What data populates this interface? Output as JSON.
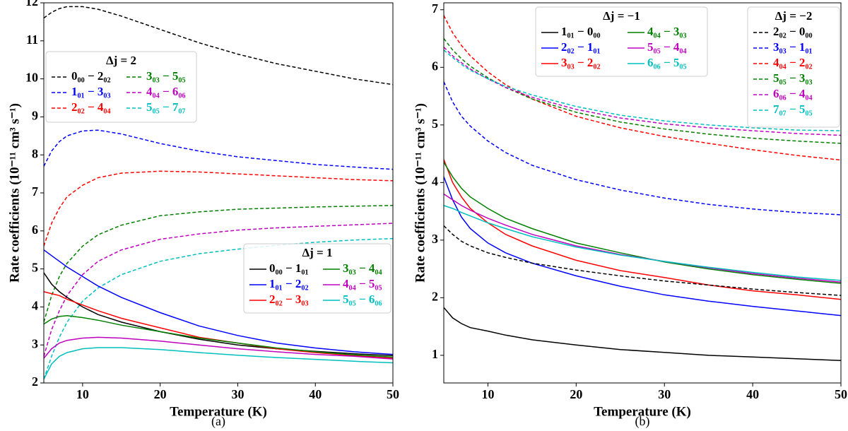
{
  "chart_data": [
    {
      "type": "line",
      "caption": "(a)",
      "xlabel": "Temperature (K)",
      "ylabel": "Rate coefficients (10⁻¹¹ cm³ s⁻¹)",
      "x": [
        5,
        6,
        7,
        8,
        10,
        12,
        15,
        20,
        25,
        30,
        35,
        40,
        45,
        50
      ],
      "xlim": [
        5,
        50
      ],
      "ylim": [
        2,
        12
      ],
      "xticks": [
        10,
        20,
        30,
        40,
        50
      ],
      "yticks": [
        2,
        3,
        4,
        5,
        6,
        7,
        8,
        9,
        10,
        11,
        12
      ],
      "groups": [
        {
          "title": "Δj = 2",
          "dashed": true,
          "series": [
            {
              "name": "0₀₀ − 2₀₂",
              "color": "#000000",
              "values": [
                11.6,
                11.75,
                11.85,
                11.9,
                11.9,
                11.83,
                11.65,
                11.3,
                10.95,
                10.65,
                10.4,
                10.2,
                10.0,
                9.85
              ]
            },
            {
              "name": "1₀₁ − 3₀₃",
              "color": "#0000ff",
              "values": [
                7.7,
                8.1,
                8.35,
                8.5,
                8.63,
                8.65,
                8.55,
                8.3,
                8.1,
                7.95,
                7.85,
                7.75,
                7.68,
                7.62
              ]
            },
            {
              "name": "2₀₂ − 4₀₄",
              "color": "#ff0000",
              "values": [
                5.6,
                6.2,
                6.6,
                6.9,
                7.2,
                7.4,
                7.52,
                7.57,
                7.55,
                7.5,
                7.45,
                7.4,
                7.35,
                7.32
              ]
            },
            {
              "name": "3₀₃ − 5₀₅",
              "color": "#008000",
              "values": [
                3.6,
                4.3,
                4.8,
                5.15,
                5.6,
                5.9,
                6.15,
                6.4,
                6.5,
                6.57,
                6.6,
                6.63,
                6.65,
                6.67
              ]
            },
            {
              "name": "4₀₄ − 6₀₆",
              "color": "#bf00bf",
              "values": [
                2.7,
                3.4,
                3.9,
                4.3,
                4.85,
                5.2,
                5.5,
                5.78,
                5.92,
                6.02,
                6.08,
                6.12,
                6.16,
                6.2
              ]
            },
            {
              "name": "5₀₅ − 7₀₇",
              "color": "#00bfbf",
              "values": [
                2.1,
                2.7,
                3.2,
                3.6,
                4.15,
                4.5,
                4.85,
                5.2,
                5.4,
                5.52,
                5.62,
                5.7,
                5.76,
                5.8
              ]
            }
          ]
        },
        {
          "title": "Δj = 1",
          "dashed": false,
          "series": [
            {
              "name": "0₀₀ − 1₀₁",
              "color": "#000000",
              "values": [
                4.9,
                4.6,
                4.4,
                4.25,
                4.0,
                3.8,
                3.6,
                3.35,
                3.15,
                3.0,
                2.9,
                2.83,
                2.77,
                2.72
              ]
            },
            {
              "name": "1₀₁ − 2₀₂",
              "color": "#0000ff",
              "values": [
                5.5,
                5.35,
                5.2,
                5.05,
                4.8,
                4.55,
                4.25,
                3.85,
                3.5,
                3.25,
                3.05,
                2.92,
                2.82,
                2.75
              ]
            },
            {
              "name": "2₀₂ − 3₀₃",
              "color": "#ff0000",
              "values": [
                4.4,
                4.35,
                4.3,
                4.2,
                4.05,
                3.9,
                3.7,
                3.45,
                3.2,
                3.05,
                2.9,
                2.8,
                2.72,
                2.65
              ]
            },
            {
              "name": "3₀₃ − 4₀₄",
              "color": "#008000",
              "values": [
                3.55,
                3.68,
                3.75,
                3.77,
                3.72,
                3.65,
                3.52,
                3.35,
                3.18,
                3.05,
                2.92,
                2.82,
                2.74,
                2.68
              ]
            },
            {
              "name": "4₀₄ − 5₀₅",
              "color": "#bf00bf",
              "values": [
                2.65,
                2.9,
                3.05,
                3.12,
                3.18,
                3.2,
                3.18,
                3.1,
                3.0,
                2.9,
                2.82,
                2.75,
                2.7,
                2.63
              ]
            },
            {
              "name": "5₀₅ − 6₀₆",
              "color": "#00bfbf",
              "values": [
                2.1,
                2.5,
                2.7,
                2.8,
                2.9,
                2.93,
                2.93,
                2.88,
                2.8,
                2.73,
                2.67,
                2.62,
                2.57,
                2.53
              ]
            }
          ]
        }
      ]
    },
    {
      "type": "line",
      "caption": "(b)",
      "xlabel": "Temperature (K)",
      "ylabel": "Rate coefficients (10⁻¹¹ cm³ s⁻¹)",
      "x": [
        5,
        6,
        7,
        8,
        10,
        12,
        15,
        20,
        25,
        30,
        35,
        40,
        45,
        50
      ],
      "xlim": [
        5,
        50
      ],
      "ylim": [
        0.52,
        7.12
      ],
      "xticks": [
        10,
        20,
        30,
        40,
        50
      ],
      "yticks": [
        1,
        2,
        3,
        4,
        5,
        6,
        7
      ],
      "groups": [
        {
          "title": "Δj = −1",
          "dashed": false,
          "series": [
            {
              "name": "1₀₁ − 0₀₀",
              "color": "#000000",
              "values": [
                1.83,
                1.65,
                1.55,
                1.48,
                1.42,
                1.35,
                1.27,
                1.18,
                1.1,
                1.05,
                1.0,
                0.97,
                0.94,
                0.91
              ]
            },
            {
              "name": "2₀₂ − 1₀₁",
              "color": "#0000ff",
              "values": [
                4.1,
                3.7,
                3.4,
                3.2,
                2.95,
                2.78,
                2.6,
                2.38,
                2.2,
                2.05,
                1.94,
                1.85,
                1.77,
                1.69
              ]
            },
            {
              "name": "3₀₃ − 2₀₂",
              "color": "#ff0000",
              "values": [
                4.4,
                4.0,
                3.75,
                3.55,
                3.3,
                3.1,
                2.9,
                2.65,
                2.47,
                2.35,
                2.22,
                2.12,
                2.05,
                1.97
              ]
            },
            {
              "name": "4₀₄ − 3₀₃",
              "color": "#008000",
              "values": [
                4.35,
                4.1,
                3.9,
                3.75,
                3.55,
                3.38,
                3.2,
                2.95,
                2.78,
                2.62,
                2.5,
                2.4,
                2.32,
                2.25
              ]
            },
            {
              "name": "5₀₅ − 4₀₄",
              "color": "#bf00bf",
              "values": [
                3.8,
                3.7,
                3.6,
                3.52,
                3.38,
                3.26,
                3.1,
                2.9,
                2.75,
                2.63,
                2.52,
                2.42,
                2.34,
                2.27
              ]
            },
            {
              "name": "6₀₆ − 5₀₅",
              "color": "#00bfbf",
              "values": [
                3.6,
                3.55,
                3.48,
                3.42,
                3.3,
                3.2,
                3.06,
                2.88,
                2.74,
                2.63,
                2.53,
                2.44,
                2.36,
                2.3
              ]
            }
          ]
        },
        {
          "title": "Δj = −2",
          "dashed": true,
          "series": [
            {
              "name": "2₀₂ − 0₀₀",
              "color": "#000000",
              "values": [
                3.25,
                3.1,
                2.98,
                2.9,
                2.78,
                2.7,
                2.6,
                2.48,
                2.38,
                2.29,
                2.22,
                2.15,
                2.09,
                2.04
              ]
            },
            {
              "name": "3₀₃ − 1₀₁",
              "color": "#0000ff",
              "values": [
                5.75,
                5.4,
                5.15,
                4.98,
                4.72,
                4.52,
                4.3,
                4.05,
                3.87,
                3.73,
                3.62,
                3.54,
                3.48,
                3.44
              ]
            },
            {
              "name": "4₀₄ − 2₀₂",
              "color": "#ff0000",
              "values": [
                6.9,
                6.6,
                6.38,
                6.2,
                5.92,
                5.7,
                5.45,
                5.15,
                4.95,
                4.8,
                4.68,
                4.57,
                4.47,
                4.39
              ]
            },
            {
              "name": "5₀₅ − 3₀₃",
              "color": "#008000",
              "values": [
                6.5,
                6.3,
                6.15,
                6.02,
                5.82,
                5.65,
                5.45,
                5.22,
                5.05,
                4.93,
                4.84,
                4.77,
                4.72,
                4.68
              ]
            },
            {
              "name": "6₀₆ − 4₀₄",
              "color": "#bf00bf",
              "values": [
                6.35,
                6.2,
                6.08,
                5.97,
                5.8,
                5.65,
                5.48,
                5.27,
                5.12,
                5.02,
                4.95,
                4.9,
                4.85,
                4.82
              ]
            },
            {
              "name": "7₀₇ − 5₀₅",
              "color": "#00bfbf",
              "values": [
                6.3,
                6.17,
                6.05,
                5.95,
                5.8,
                5.67,
                5.52,
                5.32,
                5.17,
                5.07,
                5.0,
                4.95,
                4.91,
                4.9
              ]
            }
          ]
        }
      ]
    }
  ]
}
